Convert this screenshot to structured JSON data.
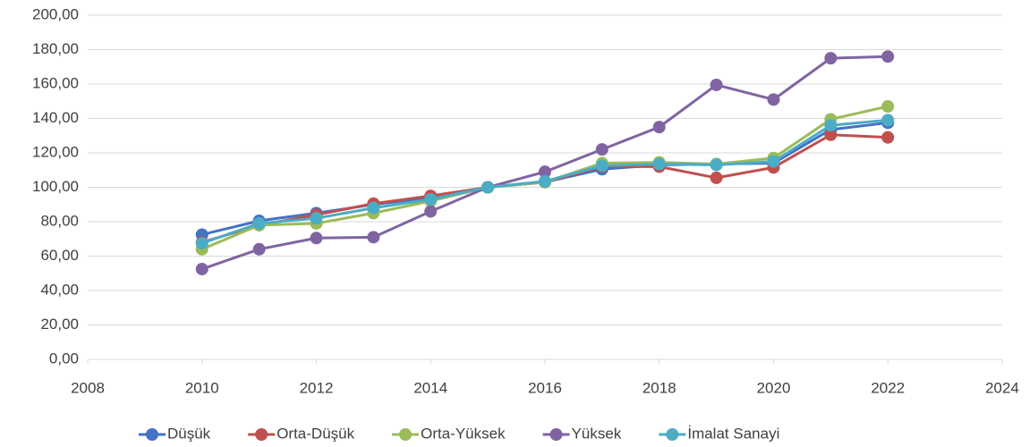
{
  "chart_data": {
    "type": "line",
    "xlim": [
      2008,
      2024
    ],
    "xticks": [
      2008,
      2010,
      2012,
      2014,
      2016,
      2018,
      2020,
      2022,
      2024
    ],
    "ylim": [
      0,
      200
    ],
    "yticks": [
      {
        "value": 0,
        "label": "0,00"
      },
      {
        "value": 20,
        "label": "20,00"
      },
      {
        "value": 40,
        "label": "40,00"
      },
      {
        "value": 60,
        "label": "60,00"
      },
      {
        "value": 80,
        "label": "80,00"
      },
      {
        "value": 100,
        "label": "100,00"
      },
      {
        "value": 120,
        "label": "120,00"
      },
      {
        "value": 140,
        "label": "140,00"
      },
      {
        "value": 160,
        "label": "160,00"
      },
      {
        "value": 180,
        "label": "180,00"
      },
      {
        "value": 200,
        "label": "200,00"
      }
    ],
    "grid": true,
    "legend": "bottom",
    "x": [
      2010,
      2011,
      2012,
      2013,
      2014,
      2015,
      2016,
      2017,
      2018,
      2019,
      2020,
      2021,
      2022
    ],
    "series": [
      {
        "name": "Düşük",
        "color": "#4472c4",
        "values": [
          72.5,
          80.5,
          85,
          90,
          94,
          100,
          103,
          110.5,
          113,
          113.5,
          114,
          133.5,
          137.5
        ]
      },
      {
        "name": "Orta-Düşük",
        "color": "#c0504d",
        "values": [
          68,
          78,
          84,
          90.5,
          95,
          100,
          103,
          112,
          112,
          105.5,
          111.5,
          130.5,
          129
        ]
      },
      {
        "name": "Orta-Yüksek",
        "color": "#9bbb59",
        "values": [
          64,
          78,
          79,
          85,
          92,
          100,
          103,
          114,
          114.5,
          113.5,
          117,
          139.5,
          147
        ]
      },
      {
        "name": "Yüksek",
        "color": "#8064a2",
        "values": [
          52.5,
          64,
          70.5,
          71,
          86,
          100,
          109,
          122,
          135,
          159.5,
          151,
          175,
          176
        ]
      },
      {
        "name": "İmalat Sanayi",
        "color": "#4bacc6",
        "values": [
          67.5,
          79,
          82,
          88,
          93,
          100,
          103.5,
          112.5,
          113.5,
          113,
          115,
          136,
          139
        ]
      }
    ]
  }
}
